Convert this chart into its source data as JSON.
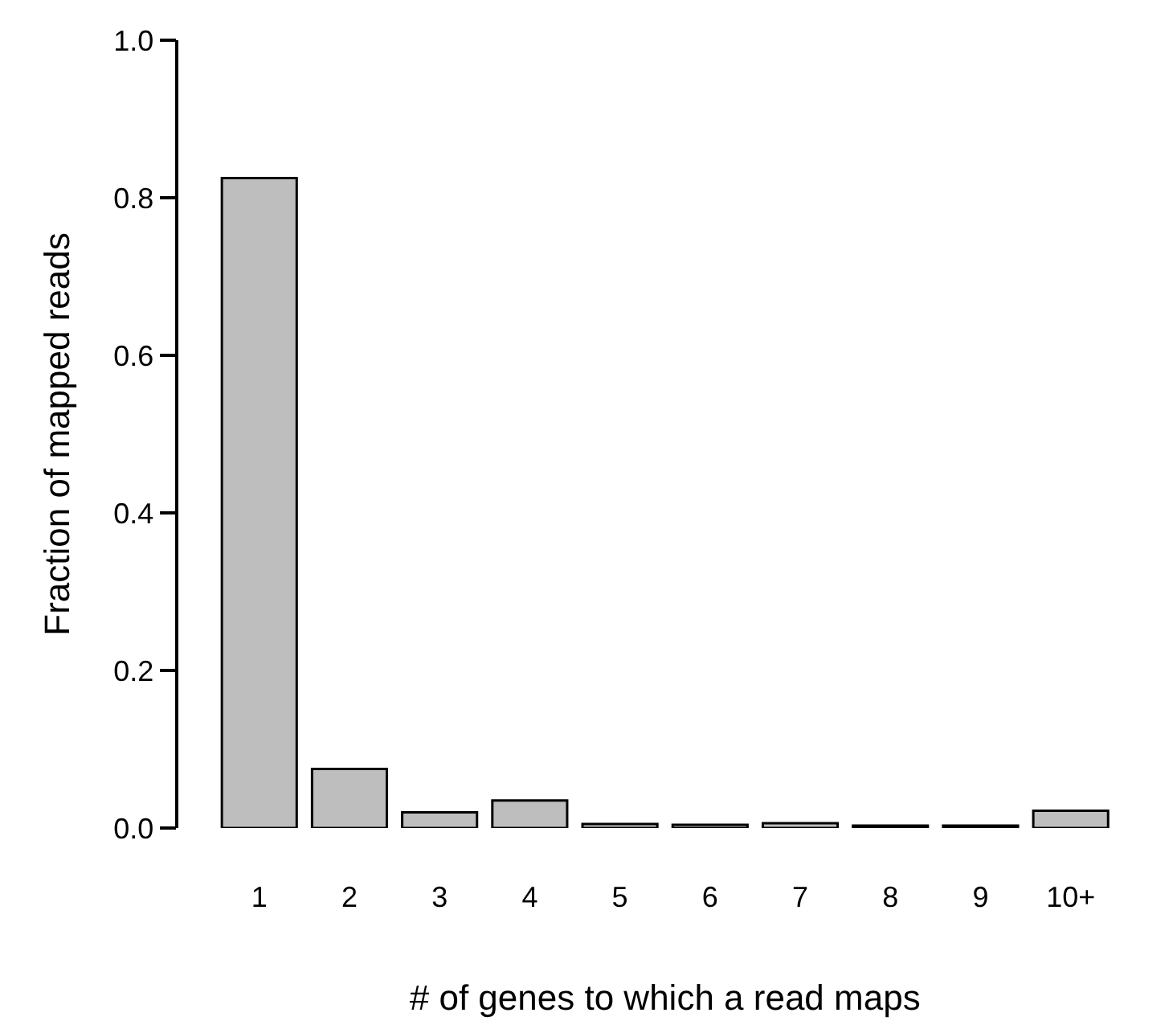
{
  "chart_data": {
    "type": "bar",
    "xlabel": "# of genes to which a read maps",
    "ylabel": "Fraction of mapped reads",
    "categories": [
      "1",
      "2",
      "3",
      "4",
      "5",
      "6",
      "7",
      "8",
      "9",
      "10+"
    ],
    "values": [
      0.825,
      0.075,
      0.02,
      0.035,
      0.005,
      0.004,
      0.006,
      0.003,
      0.003,
      0.022
    ],
    "color": "#bebebe",
    "ylim": [
      0,
      1
    ],
    "yticks": [
      {
        "value": 0,
        "label": "0.0"
      },
      {
        "value": 0.2,
        "label": "0.2"
      },
      {
        "value": 0.4,
        "label": "0.4"
      },
      {
        "value": 0.6,
        "label": "0.6"
      },
      {
        "value": 0.8,
        "label": "0.8"
      },
      {
        "value": 1,
        "label": "1.0"
      }
    ]
  }
}
